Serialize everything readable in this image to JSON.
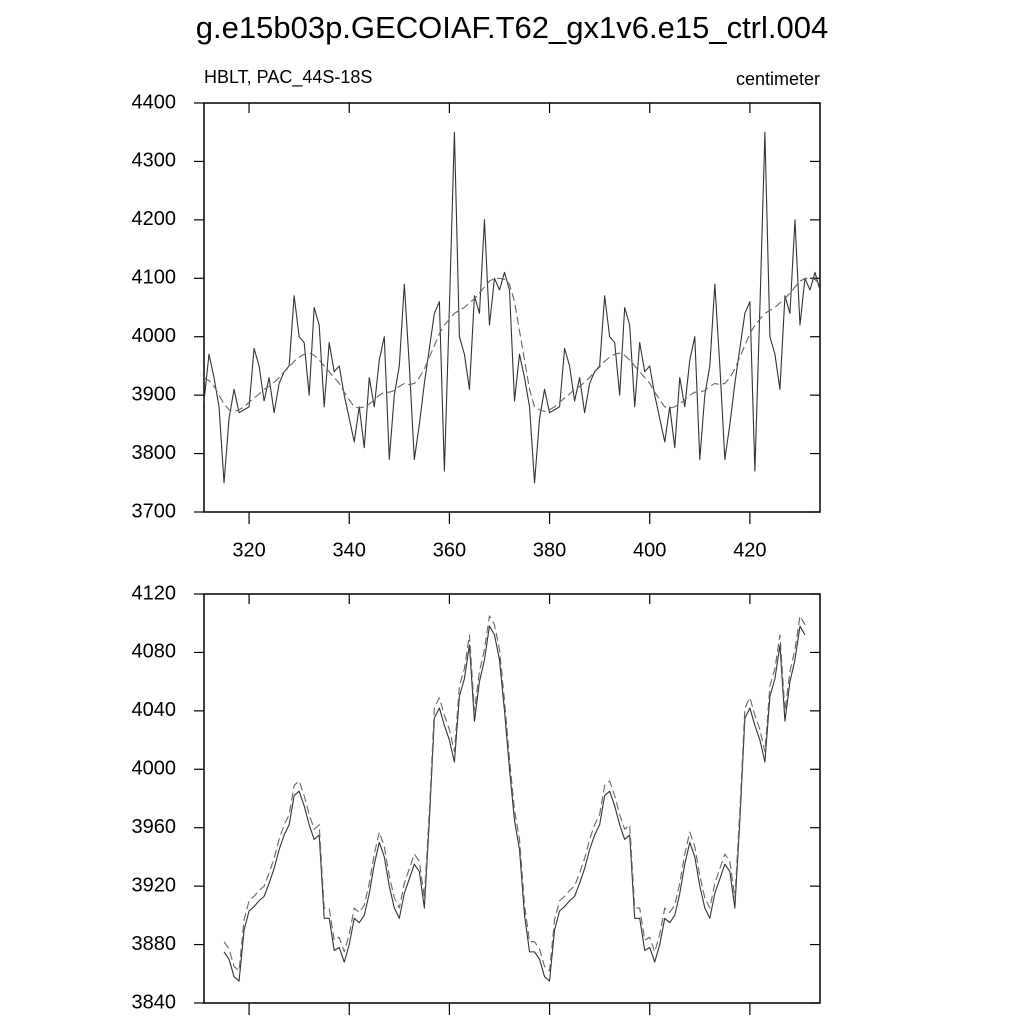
{
  "chart_data": [
    {
      "type": "line",
      "title": "g.e15b03p.GECOIAF.T62_gx1v6.e15_ctrl.004",
      "subtitle": "HBLT, PAC_44S-18S",
      "units_label": "centimeter",
      "xlim": [
        311,
        434
      ],
      "xticks": [
        320,
        340,
        360,
        380,
        400,
        420
      ],
      "xtick_labels": true,
      "ylim": [
        3700,
        4400
      ],
      "yticks": [
        3700,
        3800,
        3900,
        4000,
        4100,
        4200,
        4300,
        4400
      ],
      "x": [
        311,
        312,
        313,
        314,
        315,
        316,
        317,
        318,
        319,
        320,
        321,
        322,
        323,
        324,
        325,
        326,
        327,
        328,
        329,
        330,
        331,
        332,
        333,
        334,
        335,
        336,
        337,
        338,
        339,
        340,
        341,
        342,
        343,
        344,
        345,
        346,
        347,
        348,
        349,
        350,
        351,
        352,
        353,
        354,
        355,
        356,
        357,
        358,
        359,
        360,
        361,
        362,
        363,
        364,
        365,
        366,
        367,
        368,
        369,
        370,
        371,
        372,
        373,
        374,
        375,
        376,
        377,
        378,
        379,
        380,
        381,
        382,
        383,
        384,
        385,
        386,
        387,
        388,
        389,
        390,
        391,
        392,
        393,
        394,
        395,
        396,
        397,
        398,
        399,
        400,
        401,
        402,
        403,
        404,
        405,
        406,
        407,
        408,
        409,
        410,
        411,
        412,
        413,
        414,
        415,
        416,
        417,
        418,
        419,
        420,
        421,
        422,
        423,
        424,
        425,
        426,
        427,
        428,
        429,
        430,
        431,
        432,
        433,
        434
      ],
      "series": [
        {
          "color": "#333333",
          "linestyle": "solid",
          "values": [
            3890,
            3970,
            3930,
            3880,
            3750,
            3860,
            3910,
            3870,
            3875,
            3880,
            3980,
            3950,
            3890,
            3930,
            3870,
            3920,
            3940,
            3950,
            4070,
            4000,
            3990,
            3900,
            4050,
            4020,
            3880,
            3990,
            3940,
            3950,
            3900,
            3860,
            3820,
            3880,
            3810,
            3930,
            3880,
            3960,
            4000,
            3790,
            3900,
            3950,
            4090,
            3950,
            3790,
            3850,
            3920,
            3980,
            4040,
            4060,
            3770,
            4050,
            4350,
            4000,
            3970,
            3910,
            4070,
            4040,
            4200,
            4020,
            4100,
            4080,
            4110,
            4080,
            3890,
            3970,
            3930,
            3880,
            3750,
            3860,
            3910,
            3870,
            3875,
            3880,
            3980,
            3950,
            3890,
            3930,
            3870,
            3920,
            3940,
            3950,
            4070,
            4000,
            3990,
            3900,
            4050,
            4020,
            3880,
            3990,
            3940,
            3950,
            3900,
            3860,
            3820,
            3880,
            3810,
            3930,
            3880,
            3960,
            4000,
            3790,
            3900,
            3950,
            4090,
            3950,
            3790,
            3850,
            3920,
            3980,
            4040,
            4060,
            3770,
            4050,
            4350,
            4000,
            3970,
            3910,
            4070,
            4040,
            4200,
            4020,
            4100,
            4080,
            4110,
            4080
          ]
        },
        {
          "color": "#666666",
          "linestyle": "dashed",
          "values": [
            3930,
            3925,
            3915,
            3900,
            3885,
            3875,
            3872,
            3875,
            3880,
            3888,
            3895,
            3902,
            3910,
            3915,
            3922,
            3930,
            3940,
            3948,
            3958,
            3965,
            3970,
            3972,
            3968,
            3960,
            3950,
            3940,
            3930,
            3920,
            3905,
            3892,
            3880,
            3878,
            3880,
            3885,
            3892,
            3900,
            3905,
            3905,
            3908,
            3915,
            3920,
            3918,
            3920,
            3930,
            3945,
            3965,
            3985,
            4005,
            4020,
            4030,
            4040,
            4045,
            4050,
            4058,
            4065,
            4075,
            4085,
            4095,
            4100,
            4100,
            4098,
            4090,
            4060,
            4010,
            3960,
            3910,
            3880,
            3875,
            3872,
            3875,
            3880,
            3888,
            3895,
            3902,
            3910,
            3915,
            3922,
            3930,
            3940,
            3948,
            3958,
            3965,
            3970,
            3972,
            3968,
            3960,
            3950,
            3940,
            3930,
            3920,
            3905,
            3892,
            3880,
            3878,
            3880,
            3885,
            3892,
            3900,
            3905,
            3905,
            3908,
            3915,
            3920,
            3918,
            3920,
            3930,
            3945,
            3965,
            3985,
            4005,
            4020,
            4030,
            4040,
            4045,
            4050,
            4058,
            4065,
            4075,
            4085,
            4095,
            4100,
            4100,
            4098,
            4090
          ]
        }
      ]
    },
    {
      "type": "line",
      "xlim": [
        311,
        434
      ],
      "xticks": [
        320,
        340,
        360,
        380,
        400,
        420
      ],
      "xtick_labels": false,
      "ylim": [
        3840,
        4120
      ],
      "yticks": [
        3840,
        3880,
        3920,
        3960,
        4000,
        4040,
        4080,
        4120
      ],
      "x": [
        315,
        316,
        317,
        318,
        319,
        320,
        321,
        322,
        323,
        324,
        325,
        326,
        327,
        328,
        329,
        330,
        331,
        332,
        333,
        334,
        335,
        336,
        337,
        338,
        339,
        340,
        341,
        342,
        343,
        344,
        345,
        346,
        347,
        348,
        349,
        350,
        351,
        352,
        353,
        354,
        355,
        356,
        357,
        358,
        359,
        360,
        361,
        362,
        363,
        364,
        365,
        366,
        367,
        368,
        369,
        370,
        371,
        372,
        373,
        374,
        375,
        376,
        377,
        378,
        379,
        380,
        381,
        382,
        383,
        384,
        385,
        386,
        387,
        388,
        389,
        390,
        391,
        392,
        393,
        394,
        395,
        396,
        397,
        398,
        399,
        400,
        401,
        402,
        403,
        404,
        405,
        406,
        407,
        408,
        409,
        410,
        411,
        412,
        413,
        414,
        415,
        416,
        417,
        418,
        419,
        420,
        421,
        422,
        423,
        424,
        425,
        426,
        427,
        428,
        429,
        430,
        431
      ],
      "series": [
        {
          "color": "#333333",
          "linestyle": "solid",
          "values": [
            3875,
            3870,
            3858,
            3855,
            3890,
            3903,
            3906,
            3910,
            3913,
            3922,
            3932,
            3945,
            3955,
            3962,
            3982,
            3985,
            3975,
            3962,
            3952,
            3955,
            3898,
            3898,
            3876,
            3878,
            3868,
            3880,
            3898,
            3895,
            3900,
            3915,
            3935,
            3950,
            3940,
            3920,
            3905,
            3898,
            3915,
            3925,
            3935,
            3930,
            3905,
            3965,
            4035,
            4042,
            4030,
            4020,
            4005,
            4050,
            4062,
            4085,
            4033,
            4060,
            4075,
            4098,
            4092,
            4075,
            4040,
            4000,
            3965,
            3945,
            3900,
            3875,
            3875,
            3870,
            3858,
            3855,
            3890,
            3903,
            3906,
            3910,
            3913,
            3922,
            3932,
            3945,
            3955,
            3962,
            3982,
            3985,
            3975,
            3962,
            3952,
            3955,
            3898,
            3898,
            3876,
            3878,
            3868,
            3880,
            3898,
            3895,
            3900,
            3915,
            3935,
            3950,
            3940,
            3920,
            3905,
            3898,
            3915,
            3925,
            3935,
            3930,
            3905,
            3965,
            4035,
            4042,
            4030,
            4020,
            4005,
            4050,
            4062,
            4085,
            4033,
            4060,
            4075,
            4098,
            4092
          ]
        },
        {
          "color": "#666666",
          "linestyle": "dashed",
          "values": [
            3882,
            3877,
            3865,
            3862,
            3897,
            3910,
            3913,
            3917,
            3920,
            3929,
            3939,
            3952,
            3962,
            3969,
            3989,
            3992,
            3982,
            3969,
            3959,
            3962,
            3905,
            3905,
            3883,
            3885,
            3875,
            3887,
            3905,
            3902,
            3907,
            3922,
            3942,
            3957,
            3947,
            3927,
            3912,
            3905,
            3922,
            3932,
            3942,
            3937,
            3912,
            3972,
            4042,
            4049,
            4037,
            4027,
            4012,
            4057,
            4069,
            4092,
            4040,
            4067,
            4082,
            4105,
            4099,
            4082,
            4047,
            4007,
            3972,
            3952,
            3907,
            3882,
            3882,
            3877,
            3865,
            3862,
            3897,
            3910,
            3913,
            3917,
            3920,
            3929,
            3939,
            3952,
            3962,
            3969,
            3989,
            3992,
            3982,
            3969,
            3959,
            3962,
            3905,
            3905,
            3883,
            3885,
            3875,
            3887,
            3905,
            3902,
            3907,
            3922,
            3942,
            3957,
            3947,
            3927,
            3912,
            3905,
            3922,
            3932,
            3942,
            3937,
            3912,
            3972,
            4042,
            4049,
            4037,
            4027,
            4012,
            4057,
            4069,
            4092,
            4040,
            4067,
            4082,
            4105,
            4099
          ]
        }
      ]
    }
  ]
}
